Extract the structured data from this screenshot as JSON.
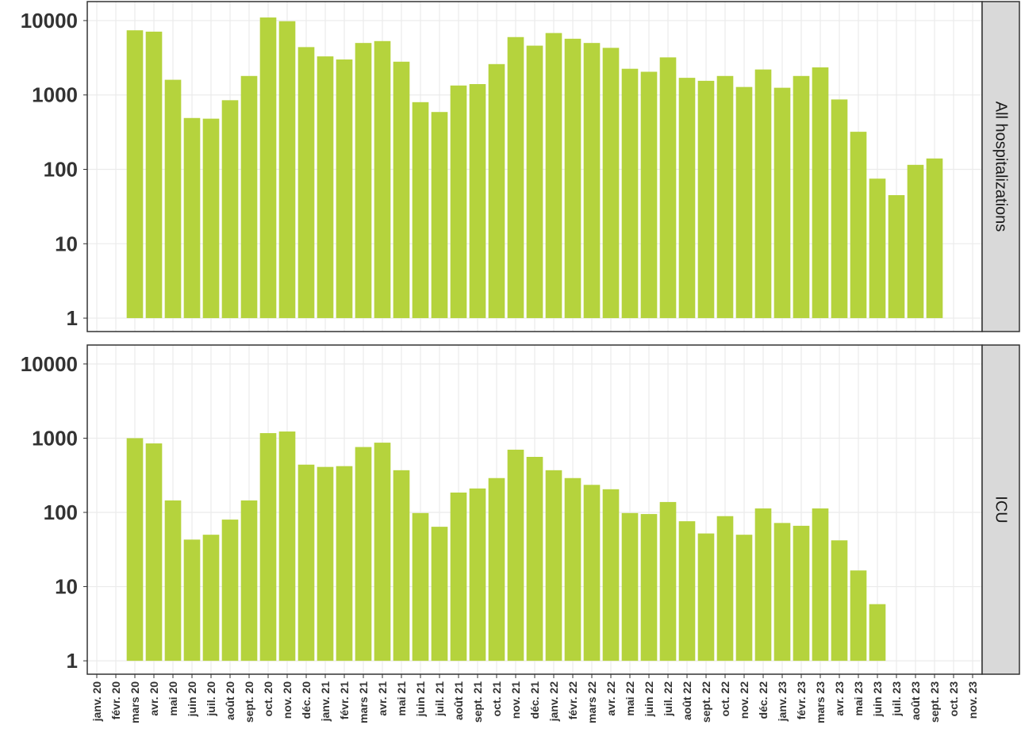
{
  "chart_data": {
    "type": "bar",
    "facets": true,
    "log_scale": true,
    "grid": true,
    "categories": [
      "janv. 20",
      "févr. 20",
      "mars 20",
      "avr. 20",
      "mai 20",
      "juin 20",
      "juil. 20",
      "août 20",
      "sept. 20",
      "oct. 20",
      "nov. 20",
      "déc. 20",
      "janv. 21",
      "févr. 21",
      "mars 21",
      "avr. 21",
      "mai 21",
      "juin 21",
      "juil. 21",
      "août 21",
      "sept. 21",
      "oct. 21",
      "nov. 21",
      "déc. 21",
      "janv. 22",
      "févr. 22",
      "mars 22",
      "avr. 22",
      "mai 22",
      "juin 22",
      "juil. 22",
      "août 22",
      "sept. 22",
      "oct. 22",
      "nov. 22",
      "déc. 22",
      "janv. 23",
      "févr. 23",
      "mars 23",
      "avr. 23",
      "mai 23",
      "juin 23",
      "juil. 23",
      "août 23",
      "sept. 23",
      "oct. 23",
      "nov. 23"
    ],
    "series": [
      {
        "name": "All hospitalizations",
        "color": "#b5d33d",
        "values": [
          null,
          null,
          7400,
          7100,
          1600,
          490,
          480,
          850,
          1800,
          11000,
          9800,
          4400,
          3300,
          3000,
          5000,
          5300,
          2800,
          800,
          590,
          1340,
          1400,
          2600,
          6000,
          4600,
          6800,
          5700,
          5000,
          4300,
          2250,
          2050,
          3200,
          1700,
          1550,
          1800,
          1280,
          2200,
          1250,
          1800,
          2350,
          870,
          320,
          75,
          45,
          115,
          140,
          null,
          null
        ]
      },
      {
        "name": "ICU",
        "color": "#b5d33d",
        "values": [
          null,
          null,
          1000,
          850,
          145,
          43,
          50,
          80,
          145,
          1170,
          1230,
          440,
          410,
          420,
          760,
          870,
          370,
          98,
          64,
          185,
          210,
          290,
          700,
          560,
          370,
          290,
          235,
          205,
          98,
          95,
          138,
          76,
          52,
          89,
          50,
          113,
          72,
          66,
          113,
          42,
          16.5,
          5.8,
          null,
          null,
          null,
          null,
          null
        ]
      }
    ],
    "ylim": [
      0.66,
      18000
    ],
    "yticks": [
      1,
      10,
      100,
      1000,
      10000
    ]
  }
}
